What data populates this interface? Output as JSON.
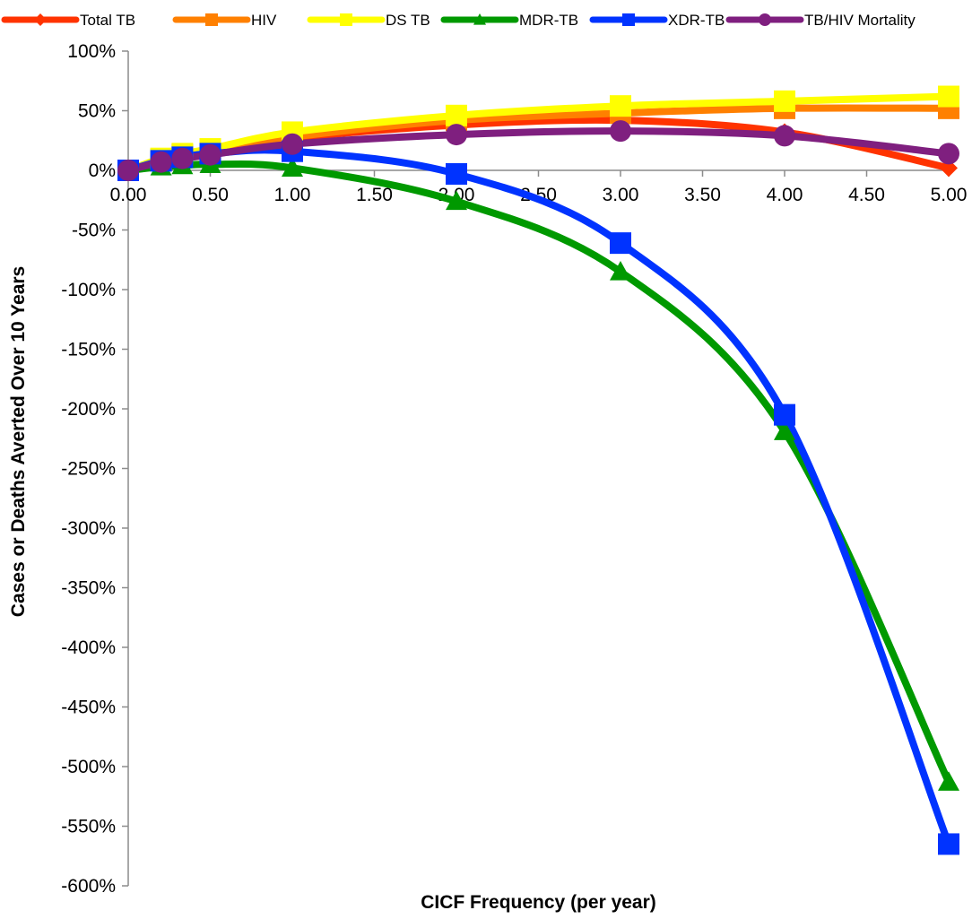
{
  "chart_data": {
    "type": "line",
    "title": "",
    "xlabel": "CICF Frequency (per year)",
    "ylabel": "Cases or Deaths Averted Over 10 Years",
    "xlim": [
      0,
      5
    ],
    "ylim": [
      -600,
      100
    ],
    "x_ticks": [
      "0.00",
      "0.50",
      "1.00",
      "1.50",
      "2.00",
      "2.50",
      "3.00",
      "3.50",
      "4.00",
      "4.50",
      "5.00"
    ],
    "y_ticks": [
      "100%",
      "50%",
      "0%",
      "-50%",
      "-100%",
      "-150%",
      "-200%",
      "-250%",
      "-300%",
      "-350%",
      "-400%",
      "-450%",
      "-500%",
      "-550%",
      "-600%"
    ],
    "grid": false,
    "legend_position": "top",
    "x": [
      0,
      0.2,
      0.33,
      0.5,
      1,
      2,
      3,
      4,
      5
    ],
    "series": [
      {
        "name": "Total TB",
        "color": "#ff3300",
        "marker": "diamond",
        "values": [
          0,
          8,
          12,
          16,
          27,
          38,
          42,
          32,
          2
        ]
      },
      {
        "name": "HIV",
        "color": "#ff8000",
        "marker": "square",
        "values": [
          0,
          9,
          13,
          17,
          28,
          42,
          48,
          52,
          52
        ]
      },
      {
        "name": "DS TB",
        "color": "#ffff00",
        "marker": "square",
        "values": [
          0,
          10,
          14,
          18,
          32,
          46,
          54,
          58,
          62
        ]
      },
      {
        "name": "MDR-TB",
        "color": "#009900",
        "marker": "triangle",
        "values": [
          0,
          3,
          4,
          5,
          2,
          -26,
          -85,
          -219,
          -513
        ]
      },
      {
        "name": "XDR-TB",
        "color": "#0033ff",
        "marker": "square",
        "values": [
          0,
          8,
          11,
          14,
          16,
          -3,
          -61,
          -205,
          -565
        ]
      },
      {
        "name": "TB/HIV Mortality",
        "color": "#7f1f7f",
        "marker": "circle",
        "values": [
          0,
          7,
          10,
          13,
          22,
          30,
          33,
          29,
          14
        ]
      }
    ]
  }
}
